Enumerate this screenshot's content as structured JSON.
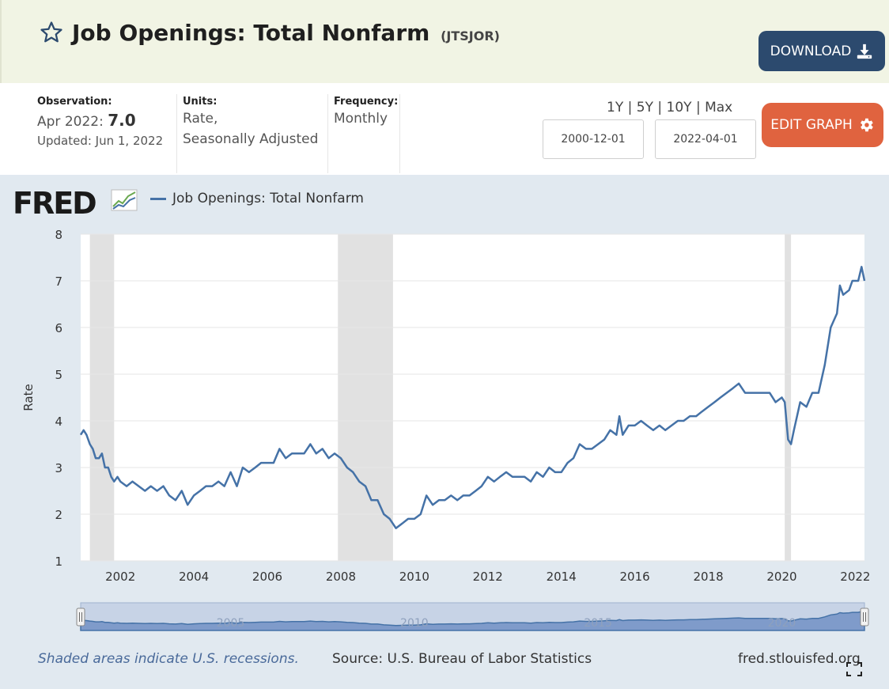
{
  "header": {
    "title": "Job Openings: Total Nonfarm",
    "series_id": "(JTSJOR)",
    "download_label": "DOWNLOAD",
    "star_icon": "star-icon",
    "download_icon": "download-icon"
  },
  "meta": {
    "observation_label": "Observation:",
    "observation_period": "Apr 2022:",
    "observation_value": "7.0",
    "updated": "Updated: Jun 1, 2022",
    "units_label": "Units:",
    "units_line1": "Rate,",
    "units_line2": "Seasonally Adjusted",
    "frequency_label": "Frequency:",
    "frequency_value": "Monthly"
  },
  "ranges": {
    "r1": "1Y",
    "r5": "5Y",
    "r10": "10Y",
    "rmax": "Max",
    "sep": "|"
  },
  "dates": {
    "start": "2000-12-01",
    "end": "2022-04-01"
  },
  "edit_label": "EDIT GRAPH",
  "logo_text": "FRED",
  "footer": {
    "recession_note": "Shaded areas indicate U.S. recessions.",
    "source": "Source: U.S. Bureau of Labor Statistics",
    "site": "fred.stlouisfed.org"
  },
  "colors": {
    "line": "#4572a7",
    "recession": "#e1e1e1",
    "edit_button": "#e0633f",
    "download_button": "#2c4a6e"
  },
  "chart_data": {
    "type": "line",
    "title": "Job Openings: Total Nonfarm",
    "ylabel": "Rate",
    "xlabel": "",
    "ylim": [
      1,
      8
    ],
    "xlim": [
      2000.92,
      2022.25
    ],
    "yticks": [
      1,
      2,
      3,
      4,
      5,
      6,
      7,
      8
    ],
    "xticks": [
      2002,
      2004,
      2006,
      2008,
      2010,
      2012,
      2014,
      2016,
      2018,
      2020,
      2022
    ],
    "navigator_labels": [
      "2005",
      "2010",
      "2015",
      "2020"
    ],
    "recessions": [
      [
        2001.17,
        2001.83
      ],
      [
        2007.92,
        2009.42
      ],
      [
        2020.08,
        2020.25
      ]
    ],
    "series": [
      {
        "name": "Job Openings: Total Nonfarm",
        "points": [
          [
            2000.92,
            3.7
          ],
          [
            2001.0,
            3.8
          ],
          [
            2001.08,
            3.7
          ],
          [
            2001.17,
            3.5
          ],
          [
            2001.25,
            3.4
          ],
          [
            2001.33,
            3.2
          ],
          [
            2001.42,
            3.2
          ],
          [
            2001.5,
            3.3
          ],
          [
            2001.58,
            3.0
          ],
          [
            2001.67,
            3.0
          ],
          [
            2001.75,
            2.8
          ],
          [
            2001.83,
            2.7
          ],
          [
            2001.92,
            2.8
          ],
          [
            2002.0,
            2.7
          ],
          [
            2002.17,
            2.6
          ],
          [
            2002.33,
            2.7
          ],
          [
            2002.5,
            2.6
          ],
          [
            2002.67,
            2.5
          ],
          [
            2002.83,
            2.6
          ],
          [
            2003.0,
            2.5
          ],
          [
            2003.17,
            2.6
          ],
          [
            2003.33,
            2.4
          ],
          [
            2003.5,
            2.3
          ],
          [
            2003.67,
            2.5
          ],
          [
            2003.83,
            2.2
          ],
          [
            2004.0,
            2.4
          ],
          [
            2004.17,
            2.5
          ],
          [
            2004.33,
            2.6
          ],
          [
            2004.5,
            2.6
          ],
          [
            2004.67,
            2.7
          ],
          [
            2004.83,
            2.6
          ],
          [
            2005.0,
            2.9
          ],
          [
            2005.17,
            2.6
          ],
          [
            2005.33,
            3.0
          ],
          [
            2005.5,
            2.9
          ],
          [
            2005.67,
            3.0
          ],
          [
            2005.83,
            3.1
          ],
          [
            2006.0,
            3.1
          ],
          [
            2006.17,
            3.1
          ],
          [
            2006.33,
            3.4
          ],
          [
            2006.5,
            3.2
          ],
          [
            2006.67,
            3.3
          ],
          [
            2006.83,
            3.3
          ],
          [
            2007.0,
            3.3
          ],
          [
            2007.17,
            3.5
          ],
          [
            2007.33,
            3.3
          ],
          [
            2007.5,
            3.4
          ],
          [
            2007.67,
            3.2
          ],
          [
            2007.83,
            3.3
          ],
          [
            2008.0,
            3.2
          ],
          [
            2008.17,
            3.0
          ],
          [
            2008.33,
            2.9
          ],
          [
            2008.5,
            2.7
          ],
          [
            2008.67,
            2.6
          ],
          [
            2008.83,
            2.3
          ],
          [
            2009.0,
            2.3
          ],
          [
            2009.17,
            2.0
          ],
          [
            2009.33,
            1.9
          ],
          [
            2009.5,
            1.7
          ],
          [
            2009.67,
            1.8
          ],
          [
            2009.83,
            1.9
          ],
          [
            2010.0,
            1.9
          ],
          [
            2010.17,
            2.0
          ],
          [
            2010.33,
            2.4
          ],
          [
            2010.5,
            2.2
          ],
          [
            2010.67,
            2.3
          ],
          [
            2010.83,
            2.3
          ],
          [
            2011.0,
            2.4
          ],
          [
            2011.17,
            2.3
          ],
          [
            2011.33,
            2.4
          ],
          [
            2011.5,
            2.4
          ],
          [
            2011.67,
            2.5
          ],
          [
            2011.83,
            2.6
          ],
          [
            2012.0,
            2.8
          ],
          [
            2012.17,
            2.7
          ],
          [
            2012.33,
            2.8
          ],
          [
            2012.5,
            2.9
          ],
          [
            2012.67,
            2.8
          ],
          [
            2012.83,
            2.8
          ],
          [
            2013.0,
            2.8
          ],
          [
            2013.17,
            2.7
          ],
          [
            2013.33,
            2.9
          ],
          [
            2013.5,
            2.8
          ],
          [
            2013.67,
            3.0
          ],
          [
            2013.83,
            2.9
          ],
          [
            2014.0,
            2.9
          ],
          [
            2014.17,
            3.1
          ],
          [
            2014.33,
            3.2
          ],
          [
            2014.5,
            3.5
          ],
          [
            2014.67,
            3.4
          ],
          [
            2014.83,
            3.4
          ],
          [
            2015.0,
            3.5
          ],
          [
            2015.17,
            3.6
          ],
          [
            2015.33,
            3.8
          ],
          [
            2015.5,
            3.7
          ],
          [
            2015.58,
            4.1
          ],
          [
            2015.67,
            3.7
          ],
          [
            2015.83,
            3.9
          ],
          [
            2016.0,
            3.9
          ],
          [
            2016.17,
            4.0
          ],
          [
            2016.33,
            3.9
          ],
          [
            2016.5,
            3.8
          ],
          [
            2016.67,
            3.9
          ],
          [
            2016.83,
            3.8
          ],
          [
            2017.0,
            3.9
          ],
          [
            2017.17,
            4.0
          ],
          [
            2017.33,
            4.0
          ],
          [
            2017.5,
            4.1
          ],
          [
            2017.67,
            4.1
          ],
          [
            2017.83,
            4.2
          ],
          [
            2018.0,
            4.3
          ],
          [
            2018.17,
            4.4
          ],
          [
            2018.33,
            4.5
          ],
          [
            2018.5,
            4.6
          ],
          [
            2018.67,
            4.7
          ],
          [
            2018.83,
            4.8
          ],
          [
            2019.0,
            4.6
          ],
          [
            2019.17,
            4.6
          ],
          [
            2019.33,
            4.6
          ],
          [
            2019.5,
            4.6
          ],
          [
            2019.67,
            4.6
          ],
          [
            2019.83,
            4.4
          ],
          [
            2020.0,
            4.5
          ],
          [
            2020.08,
            4.4
          ],
          [
            2020.17,
            3.6
          ],
          [
            2020.25,
            3.5
          ],
          [
            2020.33,
            3.8
          ],
          [
            2020.5,
            4.4
          ],
          [
            2020.67,
            4.3
          ],
          [
            2020.83,
            4.6
          ],
          [
            2021.0,
            4.6
          ],
          [
            2021.17,
            5.2
          ],
          [
            2021.33,
            6.0
          ],
          [
            2021.5,
            6.3
          ],
          [
            2021.58,
            6.9
          ],
          [
            2021.67,
            6.7
          ],
          [
            2021.83,
            6.8
          ],
          [
            2021.92,
            7.0
          ],
          [
            2022.0,
            7.0
          ],
          [
            2022.08,
            7.0
          ],
          [
            2022.17,
            7.3
          ],
          [
            2022.25,
            7.0
          ]
        ]
      }
    ]
  }
}
